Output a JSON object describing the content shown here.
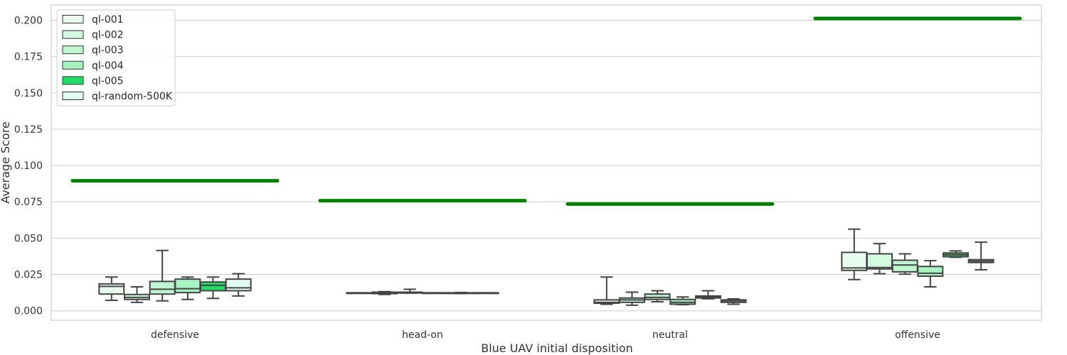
{
  "chart_data": {
    "type": "box",
    "title": "",
    "xlabel": "Blue UAV initial disposition",
    "ylabel": "Average Score",
    "categories": [
      "defensive",
      "head-on",
      "neutral",
      "offensive"
    ],
    "ylim": [
      -0.0065,
      0.2105
    ],
    "yticks": [
      0.0,
      0.025,
      0.05,
      0.075,
      0.1,
      0.125,
      0.15,
      0.175,
      0.2
    ],
    "ytick_labels": [
      "0.000",
      "0.025",
      "0.050",
      "0.075",
      "0.100",
      "0.125",
      "0.150",
      "0.175",
      "0.200"
    ],
    "grid": true,
    "legend_position": "top-left",
    "reference_color": "#008000",
    "reference_values": [
      0.0895,
      0.0758,
      0.0735,
      0.2012
    ],
    "series": [
      {
        "name": "ql-001",
        "color": "#e8fdf0",
        "boxes": [
          {
            "whislo": 0.0072,
            "q1": 0.0115,
            "med": 0.0168,
            "q3": 0.0185,
            "whishi": 0.0232
          },
          {
            "whislo": 0.0122,
            "q1": 0.0122,
            "med": 0.0123,
            "q3": 0.0124,
            "whishi": 0.0124
          },
          {
            "whislo": 0.0045,
            "q1": 0.0052,
            "med": 0.0058,
            "q3": 0.0075,
            "whishi": 0.0232
          },
          {
            "whislo": 0.0215,
            "q1": 0.0278,
            "med": 0.0295,
            "q3": 0.0402,
            "whishi": 0.0562
          }
        ]
      },
      {
        "name": "ql-002",
        "color": "#d2fbe0",
        "boxes": [
          {
            "whislo": 0.0058,
            "q1": 0.0078,
            "med": 0.0092,
            "q3": 0.0112,
            "whishi": 0.0165
          },
          {
            "whislo": 0.0112,
            "q1": 0.0118,
            "med": 0.0122,
            "q3": 0.0128,
            "whishi": 0.0132
          },
          {
            "whislo": 0.0038,
            "q1": 0.0058,
            "med": 0.0075,
            "q3": 0.0088,
            "whishi": 0.0128
          },
          {
            "whislo": 0.0255,
            "q1": 0.0288,
            "med": 0.0298,
            "q3": 0.0392,
            "whishi": 0.0462
          }
        ]
      },
      {
        "name": "ql-003",
        "color": "#bff7d2",
        "boxes": [
          {
            "whislo": 0.0068,
            "q1": 0.0115,
            "med": 0.0148,
            "q3": 0.0202,
            "whishi": 0.0415
          },
          {
            "whislo": 0.0122,
            "q1": 0.0122,
            "med": 0.0125,
            "q3": 0.0128,
            "whishi": 0.0148
          },
          {
            "whislo": 0.0062,
            "q1": 0.0078,
            "med": 0.0092,
            "q3": 0.0115,
            "whishi": 0.0138
          },
          {
            "whislo": 0.0252,
            "q1": 0.0268,
            "med": 0.0315,
            "q3": 0.0348,
            "whishi": 0.0392
          }
        ]
      },
      {
        "name": "ql-004",
        "color": "#a7f3c2",
        "boxes": [
          {
            "whislo": 0.0078,
            "q1": 0.0125,
            "med": 0.0152,
            "q3": 0.0218,
            "whishi": 0.0232
          },
          {
            "whislo": 0.0122,
            "q1": 0.0122,
            "med": 0.0123,
            "q3": 0.0124,
            "whishi": 0.0124
          },
          {
            "whislo": 0.0042,
            "q1": 0.0045,
            "med": 0.0058,
            "q3": 0.0078,
            "whishi": 0.0095
          },
          {
            "whislo": 0.0165,
            "q1": 0.0238,
            "med": 0.0258,
            "q3": 0.0305,
            "whishi": 0.0345
          }
        ]
      },
      {
        "name": "ql-005",
        "color": "#22dc65",
        "boxes": [
          {
            "whislo": 0.0085,
            "q1": 0.0138,
            "med": 0.0175,
            "q3": 0.0198,
            "whishi": 0.0232
          },
          {
            "whislo": 0.0118,
            "q1": 0.012,
            "med": 0.0122,
            "q3": 0.0124,
            "whishi": 0.0126
          },
          {
            "whislo": 0.0082,
            "q1": 0.0088,
            "med": 0.0095,
            "q3": 0.0102,
            "whishi": 0.0138
          },
          {
            "whislo": 0.0368,
            "q1": 0.0372,
            "med": 0.0385,
            "q3": 0.0398,
            "whishi": 0.0412
          }
        ]
      },
      {
        "name": "ql-random-500K",
        "color": "#e2fcf4",
        "boxes": [
          {
            "whislo": 0.0102,
            "q1": 0.0138,
            "med": 0.0158,
            "q3": 0.0218,
            "whishi": 0.0255
          },
          {
            "whislo": 0.0122,
            "q1": 0.0122,
            "med": 0.0123,
            "q3": 0.0124,
            "whishi": 0.0124
          },
          {
            "whislo": 0.0045,
            "q1": 0.0058,
            "med": 0.0068,
            "q3": 0.0075,
            "whishi": 0.0082
          },
          {
            "whislo": 0.0282,
            "q1": 0.0332,
            "med": 0.0342,
            "q3": 0.0352,
            "whishi": 0.0472
          }
        ]
      }
    ]
  }
}
